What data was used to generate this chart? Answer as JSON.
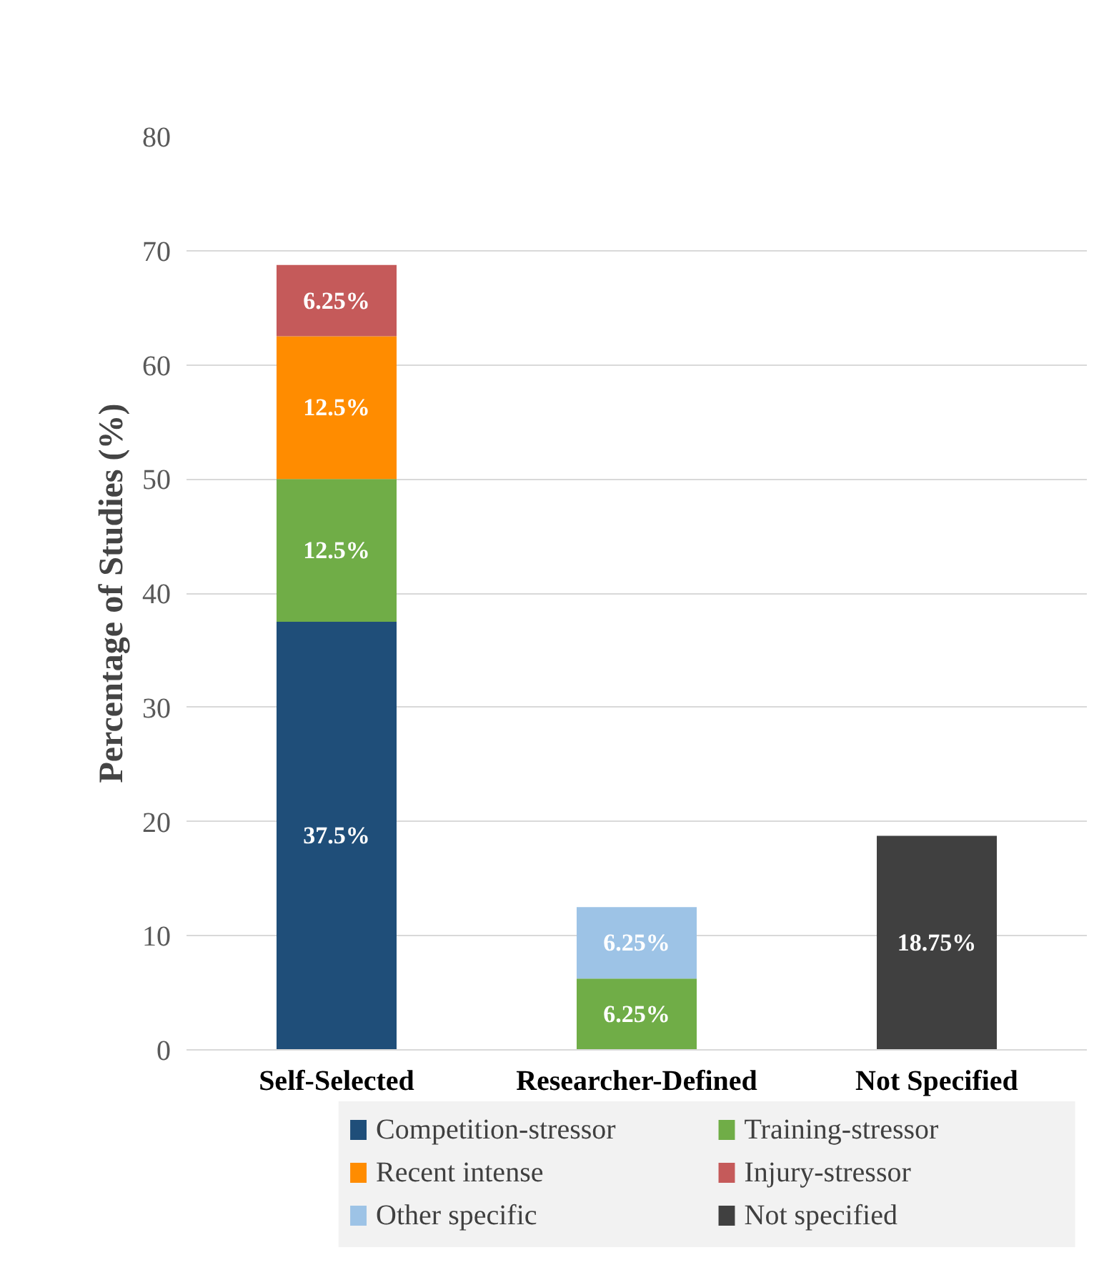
{
  "chart_data": {
    "type": "bar",
    "stacked": true,
    "ylabel": "Percentage of Studies (%)",
    "categories": [
      "Self-Selected",
      "Researcher-Defined",
      "Not Specified"
    ],
    "ylim": [
      0,
      80
    ],
    "yticks": [
      0,
      10,
      20,
      30,
      40,
      50,
      60,
      70,
      80
    ],
    "grid": "y",
    "legend": "bottom",
    "series": [
      {
        "name": "Competition-stressor",
        "color": "#1f4e79",
        "values": [
          37.5,
          null,
          null
        ],
        "value_labels": [
          "37.5%",
          null,
          null
        ]
      },
      {
        "name": "Training-stressor",
        "color": "#70ad47",
        "values": [
          12.5,
          6.25,
          null
        ],
        "value_labels": [
          "12.5%",
          "6.25%",
          null
        ]
      },
      {
        "name": "Recent intense",
        "color": "#ff8c00",
        "values": [
          12.5,
          null,
          null
        ],
        "value_labels": [
          "12.5%",
          null,
          null
        ]
      },
      {
        "name": "Injury-stressor",
        "color": "#c55a5a",
        "values": [
          6.25,
          null,
          null
        ],
        "value_labels": [
          "6.25%",
          null,
          null
        ]
      },
      {
        "name": "Other specific",
        "color": "#9dc3e6",
        "values": [
          null,
          6.25,
          null
        ],
        "value_labels": [
          null,
          "6.25%",
          null
        ]
      },
      {
        "name": "Not specified",
        "color": "#404040",
        "values": [
          null,
          null,
          18.75
        ],
        "value_labels": [
          null,
          null,
          "18.75%"
        ]
      }
    ]
  }
}
